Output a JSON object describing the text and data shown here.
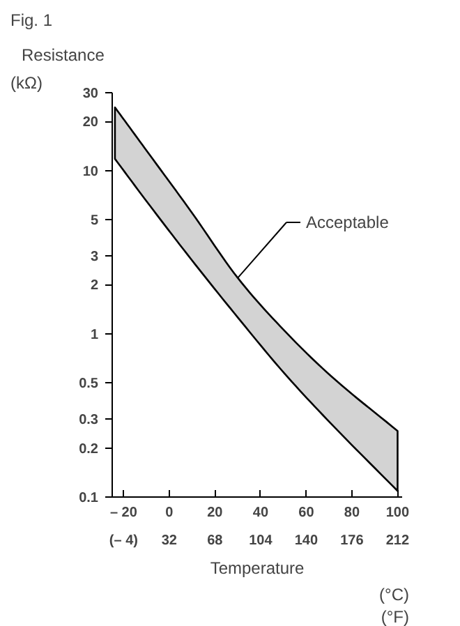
{
  "chart_data": {
    "type": "line",
    "title": "Fig. 1",
    "subtitle": "Resistance",
    "ylabel": "(kΩ)",
    "xlabel": "Temperature",
    "x": [
      -23.8,
      -10.7,
      9.6,
      30,
      50.3,
      70.6,
      100
    ],
    "series": [
      {
        "color": "#000000",
        "values": [
          null,
          null,
          null,
          null,
          null,
          null,
          null
        ],
        "lower": [
          11.8,
          6.7,
          2.86,
          1.26,
          0.575,
          0.284,
          0.109
        ],
        "upper": [
          24.4,
          13.7,
          5.6,
          2.2,
          1.05,
          0.555,
          0.254
        ]
      }
    ],
    "log": "y",
    "ylim": [
      0.1,
      30
    ],
    "yticks": [
      0.1,
      0.2,
      0.3,
      0.5,
      1,
      2,
      3,
      5,
      10,
      20,
      30
    ],
    "xlim": [
      -25,
      102
    ],
    "xticks": [
      {
        "value": -20,
        "label": "– 20"
      },
      0,
      20,
      40,
      60,
      80,
      100
    ],
    "x2lim": [
      -13,
      215.6
    ],
    "x2ticks": [
      {
        "value": -4,
        "label": "(– 4)"
      },
      32,
      68,
      104,
      140,
      176,
      212
    ],
    "annotations": [
      {
        "text": "Acceptable",
        "x": 30,
        "y": 2.2
      },
      "(°C)",
      "(°F)"
    ],
    "grid": false,
    "marker": "none",
    "line_style": "solid"
  }
}
